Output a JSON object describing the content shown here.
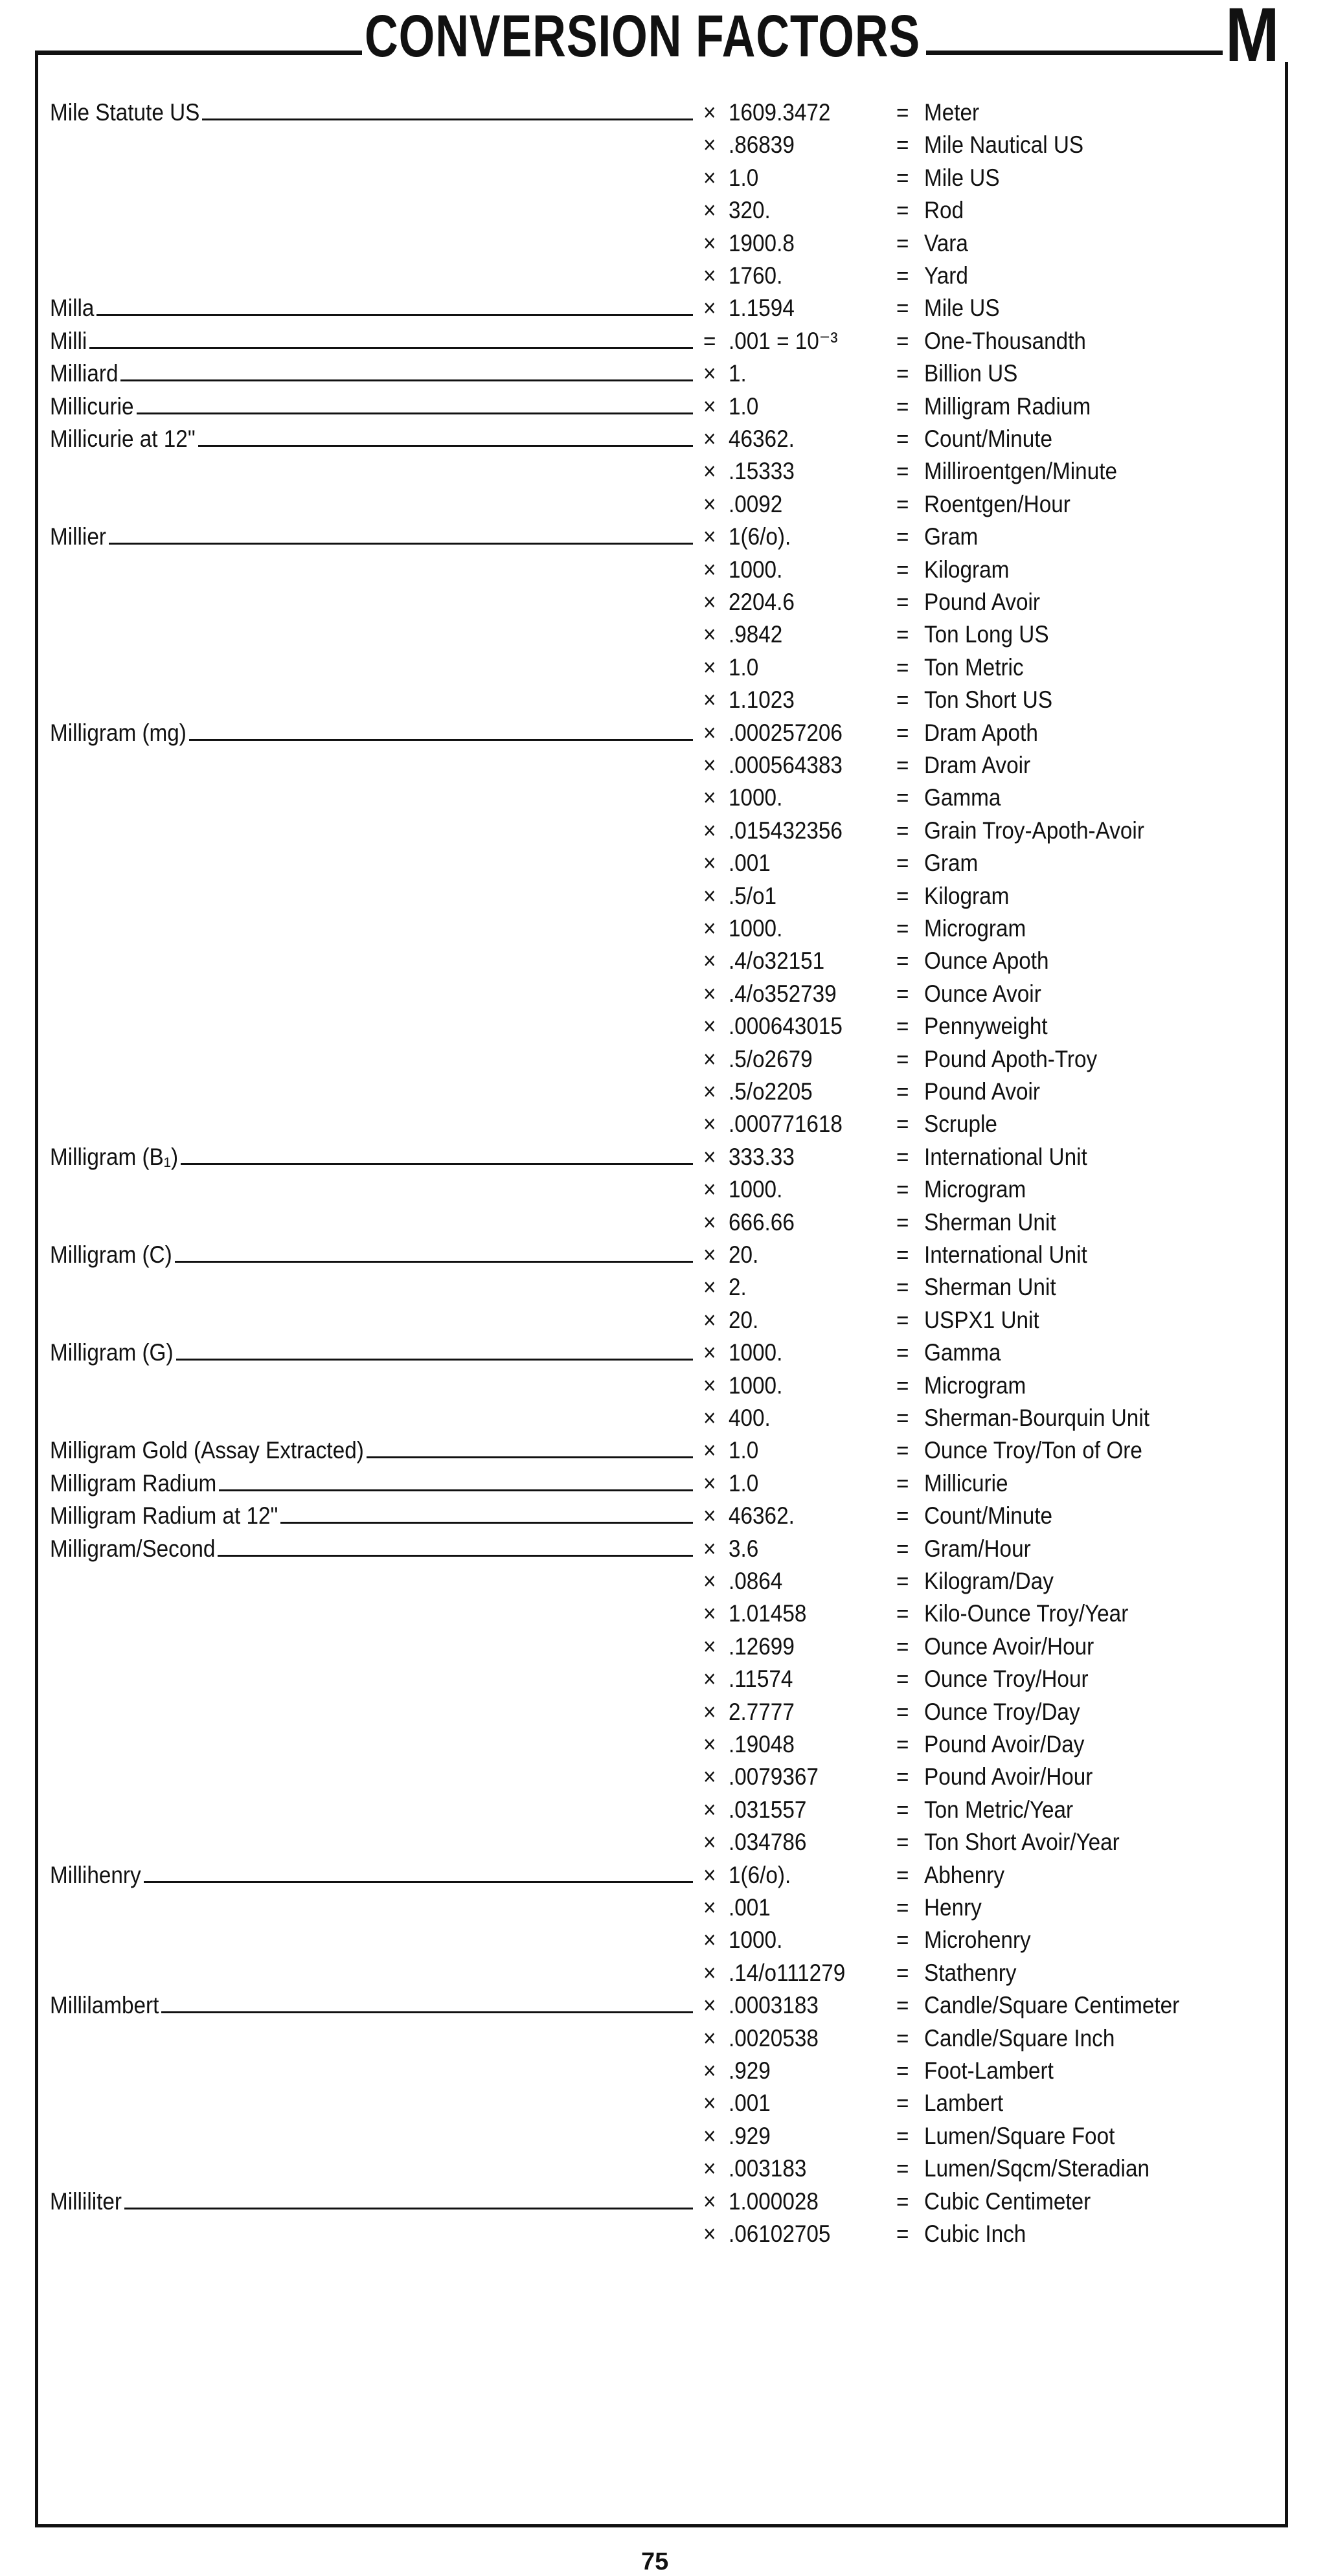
{
  "header": {
    "title": "CONVERSION FACTORS",
    "section_letter": "M"
  },
  "page_number": "75",
  "entries": [
    {
      "label": "Mile Statute US",
      "factors": [
        {
          "op": "×",
          "value": "1609.3472",
          "unit": "Meter"
        },
        {
          "op": "×",
          "value": ".86839",
          "unit": "Mile Nautical US"
        },
        {
          "op": "×",
          "value": "1.0",
          "unit": "Mile US"
        },
        {
          "op": "×",
          "value": "320.",
          "unit": "Rod"
        },
        {
          "op": "×",
          "value": "1900.8",
          "unit": "Vara"
        },
        {
          "op": "×",
          "value": "1760.",
          "unit": "Yard"
        }
      ]
    },
    {
      "label": "Milla",
      "factors": [
        {
          "op": "×",
          "value": "1.1594",
          "unit": "Mile US"
        }
      ]
    },
    {
      "label": "Milli",
      "factors": [
        {
          "op": "=",
          "value": ".001 = 10⁻³",
          "unit": "One-Thousandth"
        }
      ]
    },
    {
      "label": "Milliard",
      "factors": [
        {
          "op": "×",
          "value": "1.",
          "unit": "Billion US"
        }
      ]
    },
    {
      "label": "Millicurie",
      "factors": [
        {
          "op": "×",
          "value": "1.0",
          "unit": "Milligram Radium"
        }
      ]
    },
    {
      "label": "Millicurie at 12\"",
      "factors": [
        {
          "op": "×",
          "value": "46362.",
          "unit": "Count/Minute"
        },
        {
          "op": "×",
          "value": ".15333",
          "unit": "Milliroentgen/Minute"
        },
        {
          "op": "×",
          "value": ".0092",
          "unit": "Roentgen/Hour"
        }
      ]
    },
    {
      "label": "Millier",
      "factors": [
        {
          "op": "×",
          "value": "1(6/o).",
          "unit": "Gram"
        },
        {
          "op": "×",
          "value": "1000.",
          "unit": "Kilogram"
        },
        {
          "op": "×",
          "value": "2204.6",
          "unit": "Pound Avoir"
        },
        {
          "op": "×",
          "value": ".9842",
          "unit": "Ton Long US"
        },
        {
          "op": "×",
          "value": "1.0",
          "unit": "Ton Metric"
        },
        {
          "op": "×",
          "value": "1.1023",
          "unit": "Ton Short US"
        }
      ]
    },
    {
      "label": "Milligram (mg)",
      "factors": [
        {
          "op": "×",
          "value": ".000257206",
          "unit": "Dram Apoth"
        },
        {
          "op": "×",
          "value": ".000564383",
          "unit": "Dram Avoir"
        },
        {
          "op": "×",
          "value": "1000.",
          "unit": "Gamma"
        },
        {
          "op": "×",
          "value": ".015432356",
          "unit": "Grain Troy-Apoth-Avoir"
        },
        {
          "op": "×",
          "value": ".001",
          "unit": "Gram"
        },
        {
          "op": "×",
          "value": ".5/o1",
          "unit": "Kilogram"
        },
        {
          "op": "×",
          "value": "1000.",
          "unit": "Microgram"
        },
        {
          "op": "×",
          "value": ".4/o32151",
          "unit": "Ounce Apoth"
        },
        {
          "op": "×",
          "value": ".4/o352739",
          "unit": "Ounce Avoir"
        },
        {
          "op": "×",
          "value": ".000643015",
          "unit": "Pennyweight"
        },
        {
          "op": "×",
          "value": ".5/o2679",
          "unit": "Pound Apoth-Troy"
        },
        {
          "op": "×",
          "value": ".5/o2205",
          "unit": "Pound Avoir"
        },
        {
          "op": "×",
          "value": ".000771618",
          "unit": "Scruple"
        }
      ]
    },
    {
      "label": "Milligram (B₁)",
      "factors": [
        {
          "op": "×",
          "value": "333.33",
          "unit": "International Unit"
        },
        {
          "op": "×",
          "value": "1000.",
          "unit": "Microgram"
        },
        {
          "op": "×",
          "value": "666.66",
          "unit": "Sherman Unit"
        }
      ]
    },
    {
      "label": "Milligram (C)",
      "factors": [
        {
          "op": "×",
          "value": "20.",
          "unit": "International Unit"
        },
        {
          "op": "×",
          "value": "2.",
          "unit": "Sherman Unit"
        },
        {
          "op": "×",
          "value": "20.",
          "unit": "USPX1 Unit"
        }
      ]
    },
    {
      "label": "Milligram (G)",
      "factors": [
        {
          "op": "×",
          "value": "1000.",
          "unit": "Gamma"
        },
        {
          "op": "×",
          "value": "1000.",
          "unit": "Microgram"
        },
        {
          "op": "×",
          "value": "400.",
          "unit": "Sherman-Bourquin Unit"
        }
      ]
    },
    {
      "label": "Milligram Gold (Assay Extracted)",
      "factors": [
        {
          "op": "×",
          "value": "1.0",
          "unit": "Ounce Troy/Ton of Ore"
        }
      ]
    },
    {
      "label": "Milligram Radium",
      "factors": [
        {
          "op": "×",
          "value": "1.0",
          "unit": "Millicurie"
        }
      ]
    },
    {
      "label": "Milligram Radium at 12\"",
      "factors": [
        {
          "op": "×",
          "value": "46362.",
          "unit": "Count/Minute"
        }
      ]
    },
    {
      "label": "Milligram/Second",
      "factors": [
        {
          "op": "×",
          "value": "3.6",
          "unit": "Gram/Hour"
        },
        {
          "op": "×",
          "value": ".0864",
          "unit": "Kilogram/Day"
        },
        {
          "op": "×",
          "value": "1.01458",
          "unit": "Kilo-Ounce Troy/Year"
        },
        {
          "op": "×",
          "value": ".12699",
          "unit": "Ounce Avoir/Hour"
        },
        {
          "op": "×",
          "value": ".11574",
          "unit": "Ounce Troy/Hour"
        },
        {
          "op": "×",
          "value": "2.7777",
          "unit": "Ounce Troy/Day"
        },
        {
          "op": "×",
          "value": ".19048",
          "unit": "Pound Avoir/Day"
        },
        {
          "op": "×",
          "value": ".0079367",
          "unit": "Pound Avoir/Hour"
        },
        {
          "op": "×",
          "value": ".031557",
          "unit": "Ton Metric/Year"
        },
        {
          "op": "×",
          "value": ".034786",
          "unit": "Ton Short Avoir/Year"
        }
      ]
    },
    {
      "label": "Millihenry",
      "factors": [
        {
          "op": "×",
          "value": "1(6/o).",
          "unit": "Abhenry"
        },
        {
          "op": "×",
          "value": ".001",
          "unit": "Henry"
        },
        {
          "op": "×",
          "value": "1000.",
          "unit": "Microhenry"
        },
        {
          "op": "×",
          "value": ".14/o111279",
          "unit": "Stathenry"
        }
      ]
    },
    {
      "label": "Millilambert",
      "factors": [
        {
          "op": "×",
          "value": ".0003183",
          "unit": "Candle/Square Centimeter"
        },
        {
          "op": "×",
          "value": ".0020538",
          "unit": "Candle/Square Inch"
        },
        {
          "op": "×",
          "value": ".929",
          "unit": "Foot-Lambert"
        },
        {
          "op": "×",
          "value": ".001",
          "unit": "Lambert"
        },
        {
          "op": "×",
          "value": ".929",
          "unit": "Lumen/Square Foot"
        },
        {
          "op": "×",
          "value": ".003183",
          "unit": "Lumen/Sqcm/Steradian"
        }
      ]
    },
    {
      "label": "Milliliter",
      "factors": [
        {
          "op": "×",
          "value": "1.000028",
          "unit": "Cubic Centimeter"
        },
        {
          "op": "×",
          "value": ".06102705",
          "unit": "Cubic Inch"
        }
      ]
    }
  ]
}
